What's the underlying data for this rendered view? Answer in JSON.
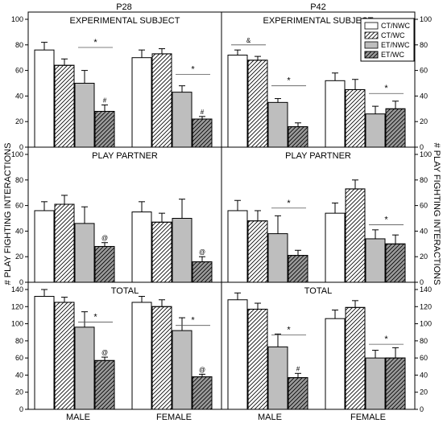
{
  "figure": {
    "column_titles": [
      "P28",
      "P42"
    ],
    "ylabel": "# PLAY FIGHTING INTERACTIONS",
    "x_groups": [
      "MALE",
      "FEMALE"
    ],
    "legend": [
      {
        "label": "CT/NWC",
        "fill": "#ffffff",
        "hatch": false
      },
      {
        "label": "CT/WC",
        "fill": "#ffffff",
        "hatch": true
      },
      {
        "label": "ET/NWC",
        "fill": "#bebebe",
        "hatch": false
      },
      {
        "label": "ET/WC",
        "fill": "#9a9a9a",
        "hatch": true
      }
    ],
    "colors": {
      "ct_fill": "#ffffff",
      "et_nwc_fill": "#bebebe",
      "et_wc_fill": "#9a9a9a",
      "line": "#000000"
    }
  },
  "chart_data": [
    {
      "type": "bar",
      "id": "p28-experimental",
      "column": "P28",
      "title": "EXPERIMENTAL SUBJECT",
      "ylim": [
        0,
        100
      ],
      "yticks": [
        0,
        20,
        40,
        60,
        80,
        100
      ],
      "categories": [
        "MALE",
        "FEMALE"
      ],
      "series": [
        {
          "name": "CT/NWC",
          "values": [
            76,
            70
          ],
          "errors": [
            6,
            6
          ]
        },
        {
          "name": "CT/WC",
          "values": [
            64,
            73
          ],
          "errors": [
            5,
            4
          ]
        },
        {
          "name": "ET/NWC",
          "values": [
            50,
            43
          ],
          "errors": [
            10,
            5
          ]
        },
        {
          "name": "ET/WC",
          "values": [
            28,
            22
          ],
          "errors": [
            5,
            2
          ]
        }
      ],
      "annotations": [
        {
          "text": "#",
          "group": 0,
          "bar": 3
        },
        {
          "text": "#",
          "group": 1,
          "bar": 3
        }
      ],
      "significance": [
        {
          "text": "*",
          "group": 0,
          "from_bar": 2,
          "to_bar": 3,
          "y": 78
        },
        {
          "text": "*",
          "group": 1,
          "from_bar": 2,
          "to_bar": 3,
          "y": 57
        }
      ]
    },
    {
      "type": "bar",
      "id": "p42-experimental",
      "column": "P42",
      "title": "EXPERIMENTAL SUBJECT",
      "ylim": [
        0,
        100
      ],
      "yticks": [
        0,
        20,
        40,
        60,
        80,
        100
      ],
      "categories": [
        "MALE",
        "FEMALE"
      ],
      "series": [
        {
          "name": "CT/NWC",
          "values": [
            72,
            52
          ],
          "errors": [
            4,
            6
          ]
        },
        {
          "name": "CT/WC",
          "values": [
            68,
            45
          ],
          "errors": [
            3,
            8
          ]
        },
        {
          "name": "ET/NWC",
          "values": [
            35,
            26
          ],
          "errors": [
            3,
            6
          ]
        },
        {
          "name": "ET/WC",
          "values": [
            16,
            30
          ],
          "errors": [
            3,
            6
          ]
        }
      ],
      "annotations": [],
      "significance": [
        {
          "text": "&",
          "group": 0,
          "from_bar": 0,
          "to_bar": 1,
          "y": 80
        },
        {
          "text": "*",
          "group": 0,
          "from_bar": 2,
          "to_bar": 3,
          "y": 48
        },
        {
          "text": "*",
          "group": 1,
          "from_bar": 2,
          "to_bar": 3,
          "y": 42
        }
      ]
    },
    {
      "type": "bar",
      "id": "p28-play-partner",
      "column": "P28",
      "title": "PLAY PARTNER",
      "ylim": [
        0,
        100
      ],
      "yticks": [
        0,
        20,
        40,
        60,
        80,
        100
      ],
      "categories": [
        "MALE",
        "FEMALE"
      ],
      "series": [
        {
          "name": "CT/NWC",
          "values": [
            56,
            55
          ],
          "errors": [
            7,
            8
          ]
        },
        {
          "name": "CT/WC",
          "values": [
            61,
            47
          ],
          "errors": [
            7,
            7
          ]
        },
        {
          "name": "ET/NWC",
          "values": [
            46,
            50
          ],
          "errors": [
            13,
            15
          ]
        },
        {
          "name": "ET/WC",
          "values": [
            28,
            16
          ],
          "errors": [
            3,
            4
          ]
        }
      ],
      "annotations": [
        {
          "text": "@",
          "group": 0,
          "bar": 3
        },
        {
          "text": "@",
          "group": 1,
          "bar": 3
        }
      ],
      "significance": []
    },
    {
      "type": "bar",
      "id": "p42-play-partner",
      "column": "P42",
      "title": "PLAY PARTNER",
      "ylim": [
        0,
        100
      ],
      "yticks": [
        0,
        20,
        40,
        60,
        80,
        100
      ],
      "categories": [
        "MALE",
        "FEMALE"
      ],
      "series": [
        {
          "name": "CT/NWC",
          "values": [
            56,
            54
          ],
          "errors": [
            8,
            8
          ]
        },
        {
          "name": "CT/WC",
          "values": [
            48,
            73
          ],
          "errors": [
            8,
            7
          ]
        },
        {
          "name": "ET/NWC",
          "values": [
            38,
            34
          ],
          "errors": [
            14,
            7
          ]
        },
        {
          "name": "ET/WC",
          "values": [
            21,
            30
          ],
          "errors": [
            4,
            7
          ]
        }
      ],
      "annotations": [],
      "significance": [
        {
          "text": "*",
          "group": 0,
          "from_bar": 2,
          "to_bar": 3,
          "y": 58
        },
        {
          "text": "*",
          "group": 1,
          "from_bar": 2,
          "to_bar": 3,
          "y": 45
        }
      ]
    },
    {
      "type": "bar",
      "id": "p28-total",
      "column": "P28",
      "title": "TOTAL",
      "ylim": [
        0,
        140
      ],
      "yticks": [
        0,
        20,
        40,
        60,
        80,
        100,
        120,
        140
      ],
      "categories": [
        "MALE",
        "FEMALE"
      ],
      "series": [
        {
          "name": "CT/NWC",
          "values": [
            132,
            125
          ],
          "errors": [
            8,
            7
          ]
        },
        {
          "name": "CT/WC",
          "values": [
            125,
            120
          ],
          "errors": [
            6,
            8
          ]
        },
        {
          "name": "ET/NWC",
          "values": [
            96,
            92
          ],
          "errors": [
            18,
            15
          ]
        },
        {
          "name": "ET/WC",
          "values": [
            57,
            38
          ],
          "errors": [
            4,
            3
          ]
        }
      ],
      "annotations": [
        {
          "text": "@",
          "group": 0,
          "bar": 3
        },
        {
          "text": "@",
          "group": 1,
          "bar": 3
        }
      ],
      "significance": [
        {
          "text": "*",
          "group": 0,
          "from_bar": 2,
          "to_bar": 3,
          "y": 102
        },
        {
          "text": "*",
          "group": 1,
          "from_bar": 2,
          "to_bar": 3,
          "y": 98
        }
      ]
    },
    {
      "type": "bar",
      "id": "p42-total",
      "column": "P42",
      "title": "TOTAL",
      "ylim": [
        0,
        140
      ],
      "yticks": [
        0,
        20,
        40,
        60,
        80,
        100,
        120,
        140
      ],
      "categories": [
        "MALE",
        "FEMALE"
      ],
      "series": [
        {
          "name": "CT/NWC",
          "values": [
            128,
            106
          ],
          "errors": [
            8,
            10
          ]
        },
        {
          "name": "CT/WC",
          "values": [
            117,
            119
          ],
          "errors": [
            7,
            8
          ]
        },
        {
          "name": "ET/NWC",
          "values": [
            73,
            60
          ],
          "errors": [
            15,
            9
          ]
        },
        {
          "name": "ET/WC",
          "values": [
            37,
            60
          ],
          "errors": [
            5,
            12
          ]
        }
      ],
      "annotations": [
        {
          "text": "#",
          "group": 0,
          "bar": 3
        }
      ],
      "significance": [
        {
          "text": "*",
          "group": 0,
          "from_bar": 2,
          "to_bar": 3,
          "y": 87
        },
        {
          "text": "*",
          "group": 1,
          "from_bar": 2,
          "to_bar": 3,
          "y": 76
        }
      ]
    }
  ]
}
